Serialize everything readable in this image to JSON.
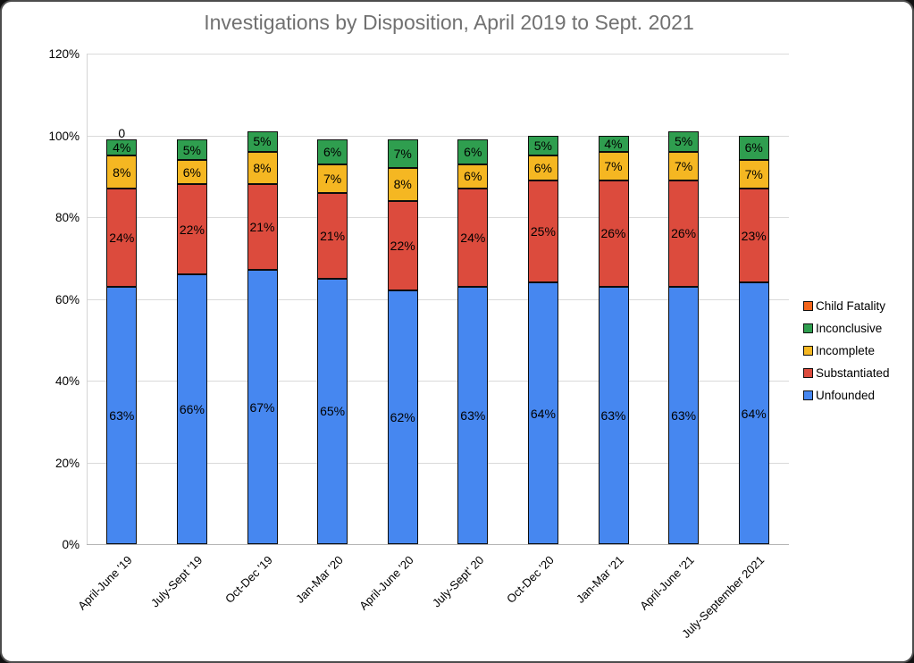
{
  "title": "Investigations by Disposition, April 2019 to Sept. 2021",
  "chart_data": {
    "type": "bar",
    "stacked": true,
    "title": "Investigations by Disposition, April 2019 to Sept. 2021",
    "categories": [
      "April-June '19",
      "July-Sept '19",
      "Oct-Dec '19",
      "Jan-Mar '20",
      "April-June '20",
      "July-Sept' 20",
      "Oct-Dec '20",
      "Jan-Mar '21",
      "April-June '21",
      "July-September 2021"
    ],
    "series": [
      {
        "name": "Unfounded",
        "color": "#4687F0",
        "values": [
          63,
          66,
          67,
          65,
          62,
          63,
          64,
          63,
          63,
          64
        ]
      },
      {
        "name": "Substantiated",
        "color": "#DC4B3D",
        "values": [
          24,
          22,
          21,
          21,
          22,
          24,
          25,
          26,
          26,
          23
        ]
      },
      {
        "name": "Incomplete",
        "color": "#F5B722",
        "values": [
          8,
          6,
          8,
          7,
          8,
          6,
          6,
          7,
          7,
          7
        ]
      },
      {
        "name": "Inconclusive",
        "color": "#2F9E4F",
        "values": [
          4,
          5,
          5,
          6,
          7,
          6,
          5,
          4,
          5,
          6
        ]
      },
      {
        "name": "Child Fatality",
        "color": "#F4651C",
        "values": [
          0,
          null,
          null,
          null,
          null,
          null,
          null,
          null,
          null,
          null
        ]
      }
    ],
    "data_label_format": "{value}%",
    "zero_label": {
      "category_index": 0,
      "text": "0"
    },
    "y_axis": {
      "tick_values": [
        0,
        20,
        40,
        60,
        80,
        100,
        120
      ],
      "tick_labels": [
        "0%",
        "20%",
        "40%",
        "60%",
        "80%",
        "100%",
        "120%"
      ],
      "max": 120
    },
    "ylim": [
      0,
      120
    ],
    "grid": true,
    "legend": {
      "position": "right",
      "items": [
        "Child Fatality",
        "Inconclusive",
        "Incomplete",
        "Substantiated",
        "Unfounded"
      ]
    }
  }
}
